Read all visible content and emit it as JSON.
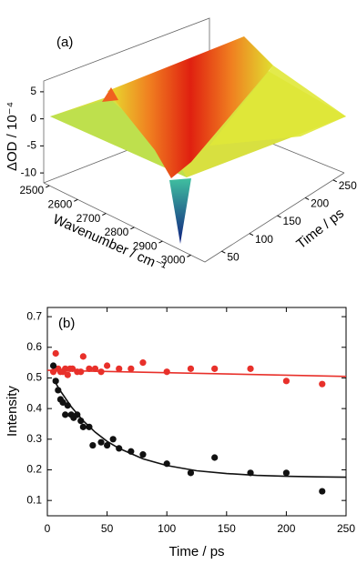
{
  "chart_data": [
    {
      "type": "surface",
      "panel_label": "(a)",
      "zlabel": "ΔOD / 10⁻⁴",
      "xlabel": "Wavenumber / cm⁻¹",
      "ylabel": "Time / ps",
      "zlim": [
        -12,
        7
      ],
      "zticks": [
        5,
        0,
        -5,
        -10
      ],
      "xlim": [
        2480,
        3050
      ],
      "xticks": [
        2500,
        2600,
        2700,
        2800,
        2900,
        3000
      ],
      "ylim": [
        20,
        270
      ],
      "yticks": [
        50,
        100,
        150,
        200,
        250
      ]
    },
    {
      "type": "scatter",
      "panel_label": "(b)",
      "xlabel": "Time / ps",
      "ylabel": "Intensity",
      "xlim": [
        0,
        250
      ],
      "xticks": [
        0,
        50,
        100,
        150,
        200,
        250
      ],
      "ylim": [
        0.05,
        0.73
      ],
      "yticks": [
        0.1,
        0.2,
        0.3,
        0.4,
        0.5,
        0.6,
        0.7
      ],
      "series": [
        {
          "mode": "markers",
          "color": "#e8302a",
          "x": [
            5,
            7,
            9,
            11,
            13,
            15,
            17,
            19,
            21,
            25,
            28,
            30,
            35,
            40,
            45,
            50,
            60,
            70,
            80,
            100,
            120,
            140,
            170,
            200,
            230
          ],
          "values": [
            0.52,
            0.58,
            0.53,
            0.52,
            0.52,
            0.53,
            0.51,
            0.53,
            0.53,
            0.52,
            0.52,
            0.57,
            0.53,
            0.53,
            0.52,
            0.54,
            0.53,
            0.53,
            0.55,
            0.52,
            0.53,
            0.53,
            0.53,
            0.49,
            0.48
          ]
        },
        {
          "mode": "markers",
          "color": "#111111",
          "x": [
            5,
            7,
            9,
            11,
            13,
            15,
            17,
            20,
            22,
            25,
            28,
            30,
            35,
            38,
            45,
            50,
            55,
            60,
            70,
            80,
            100,
            120,
            140,
            170,
            200,
            230
          ],
          "values": [
            0.54,
            0.49,
            0.46,
            0.43,
            0.42,
            0.38,
            0.41,
            0.38,
            0.37,
            0.38,
            0.36,
            0.34,
            0.34,
            0.28,
            0.29,
            0.28,
            0.3,
            0.27,
            0.26,
            0.25,
            0.22,
            0.19,
            0.24,
            0.19,
            0.19,
            0.13
          ]
        },
        {
          "mode": "lines",
          "color": "#e8302a",
          "x": [
            0,
            250
          ],
          "values": [
            0.525,
            0.505
          ]
        },
        {
          "mode": "lines",
          "color": "#111111",
          "x": [
            5,
            10,
            20,
            30,
            40,
            50,
            60,
            80,
            100,
            125,
            150,
            175,
            200,
            225,
            250
          ],
          "values": [
            0.497,
            0.463,
            0.406,
            0.36,
            0.323,
            0.293,
            0.27,
            0.236,
            0.214,
            0.197,
            0.188,
            0.182,
            0.179,
            0.177,
            0.176
          ]
        }
      ]
    }
  ]
}
